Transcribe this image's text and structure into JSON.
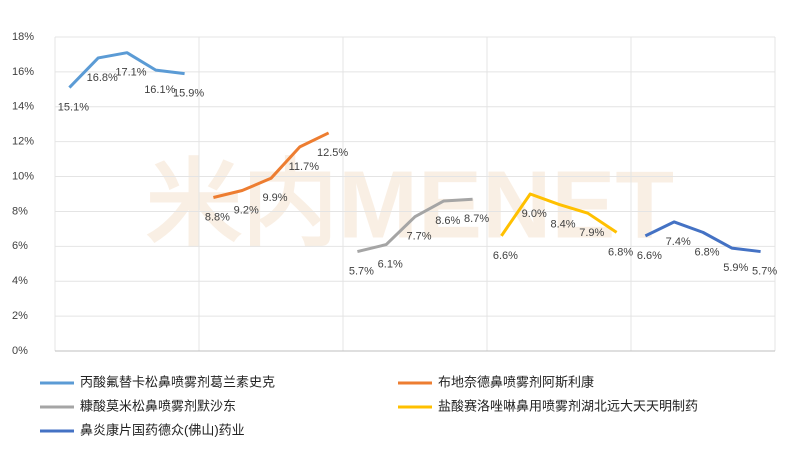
{
  "chart_data": {
    "type": "line",
    "watermark": "米内MENET",
    "categories": [
      null,
      null,
      null,
      null,
      null,
      null,
      null,
      null,
      null,
      null,
      null,
      null,
      null,
      null,
      null,
      null,
      null,
      null,
      null,
      null,
      null,
      null,
      null,
      null,
      null
    ],
    "series": [
      {
        "name": "丙酸氟替卡松鼻喷雾剂葛兰素史克",
        "color": "#5b9bd5",
        "values": [
          15.1,
          16.8,
          17.1,
          16.1,
          15.9,
          null,
          null,
          null,
          null,
          null,
          null,
          null,
          null,
          null,
          null,
          null,
          null,
          null,
          null,
          null,
          null,
          null,
          null,
          null,
          null
        ],
        "value_labels": [
          "15.1%",
          "16.8%",
          "17.1%",
          "16.1%",
          "15.9%",
          null,
          null,
          null,
          null,
          null,
          null,
          null,
          null,
          null,
          null,
          null,
          null,
          null,
          null,
          null,
          null,
          null,
          null,
          null,
          null
        ]
      },
      {
        "name": "布地奈德鼻喷雾剂阿斯利康",
        "color": "#ed7d31",
        "values": [
          null,
          null,
          null,
          null,
          null,
          8.8,
          9.2,
          9.9,
          11.7,
          12.5,
          null,
          null,
          null,
          null,
          null,
          null,
          null,
          null,
          null,
          null,
          null,
          null,
          null,
          null,
          null
        ],
        "value_labels": [
          null,
          null,
          null,
          null,
          null,
          "8.8%",
          "9.2%",
          "9.9%",
          "11.7%",
          "12.5%",
          null,
          null,
          null,
          null,
          null,
          null,
          null,
          null,
          null,
          null,
          null,
          null,
          null,
          null,
          null
        ]
      },
      {
        "name": "糠酸莫米松鼻喷雾剂默沙东",
        "color": "#a5a5a5",
        "values": [
          null,
          null,
          null,
          null,
          null,
          null,
          null,
          null,
          null,
          null,
          5.7,
          6.1,
          7.7,
          8.6,
          8.7,
          null,
          null,
          null,
          null,
          null,
          null,
          null,
          null,
          null,
          null
        ],
        "value_labels": [
          null,
          null,
          null,
          null,
          null,
          null,
          null,
          null,
          null,
          null,
          "5.7%",
          "6.1%",
          "7.7%",
          "8.6%",
          "8.7%",
          null,
          null,
          null,
          null,
          null,
          null,
          null,
          null,
          null,
          null
        ]
      },
      {
        "name": "盐酸赛洛唑啉鼻用喷雾剂湖北远大天天明制药",
        "color": "#ffc000",
        "values": [
          null,
          null,
          null,
          null,
          null,
          null,
          null,
          null,
          null,
          null,
          null,
          null,
          null,
          null,
          null,
          6.6,
          9.0,
          8.4,
          7.9,
          6.8,
          null,
          null,
          null,
          null,
          null
        ],
        "value_labels": [
          null,
          null,
          null,
          null,
          null,
          null,
          null,
          null,
          null,
          null,
          null,
          null,
          null,
          null,
          null,
          "6.6%",
          "9.0%",
          "8.4%",
          "7.9%",
          "6.8%",
          null,
          null,
          null,
          null,
          null
        ]
      },
      {
        "name": "鼻炎康片国药德众(佛山)药业",
        "color": "#4472c4",
        "values": [
          null,
          null,
          null,
          null,
          null,
          null,
          null,
          null,
          null,
          null,
          null,
          null,
          null,
          null,
          null,
          null,
          null,
          null,
          null,
          null,
          6.6,
          7.4,
          6.8,
          5.9,
          5.7
        ],
        "value_labels": [
          null,
          null,
          null,
          null,
          null,
          null,
          null,
          null,
          null,
          null,
          null,
          null,
          null,
          null,
          null,
          null,
          null,
          null,
          null,
          null,
          "6.6%",
          "7.4%",
          "6.8%",
          "5.9%",
          "5.7%"
        ]
      }
    ],
    "ylim": [
      0,
      18
    ],
    "yticks": [
      {
        "value": 0,
        "label": "0%"
      },
      {
        "value": 2,
        "label": "2%"
      },
      {
        "value": 4,
        "label": "4%"
      },
      {
        "value": 6,
        "label": "6%"
      },
      {
        "value": 8,
        "label": "8%"
      },
      {
        "value": 10,
        "label": "10%"
      },
      {
        "value": 12,
        "label": "12%"
      },
      {
        "value": 14,
        "label": "14%"
      },
      {
        "value": 16,
        "label": "16%"
      },
      {
        "value": 18,
        "label": "18%"
      }
    ],
    "grid": true
  }
}
